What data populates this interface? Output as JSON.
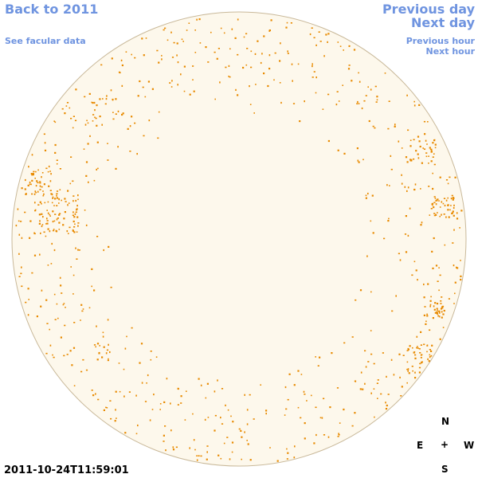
{
  "nav": {
    "back_label": "Back to 2011",
    "facular_label": "See facular data",
    "prev_day_label": "Previous day",
    "next_day_label": "Next day",
    "prev_hour_label": "Previous hour",
    "next_hour_label": "Next hour"
  },
  "timestamp": "2011-10-24T11:59:01",
  "compass": {
    "north": "N",
    "east": "E",
    "center": "+",
    "west": "W",
    "south": "S"
  },
  "colors": {
    "disc_fill": "#fdf8ec",
    "disc_stroke": "#c9b99a",
    "spot": "#e88a00",
    "link": "#6f94e0"
  }
}
